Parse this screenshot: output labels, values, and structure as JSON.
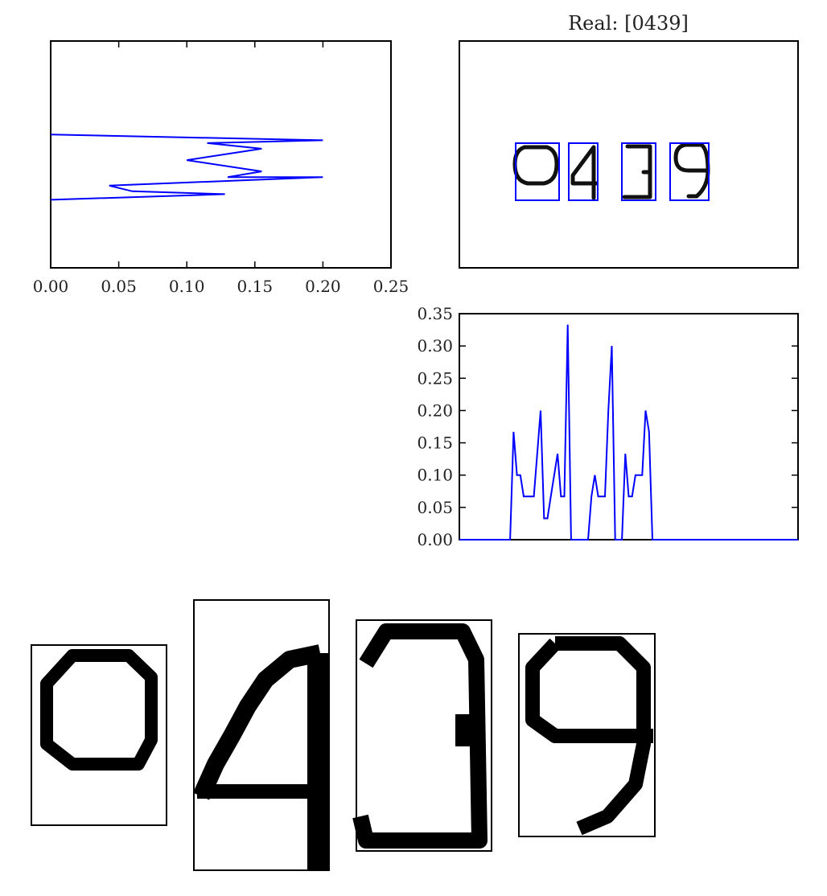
{
  "title": "Real: [0439]",
  "chart_data": [
    {
      "type": "line",
      "name": "horizontal-projection",
      "orientation": "horizontal",
      "xlim": [
        0.0,
        0.25
      ],
      "ylim": [
        0,
        40
      ],
      "x_ticks": [
        "0.00",
        "0.05",
        "0.10",
        "0.15",
        "0.20",
        "0.25"
      ],
      "y_ticks": [],
      "series": [
        {
          "x": [
            0.0,
            0.2,
            0.115,
            0.155,
            0.1,
            0.155,
            0.13,
            0.2,
            0.043,
            0.06,
            0.128,
            0.0
          ],
          "y": [
            16.5,
            17.5,
            18.0,
            19.0,
            21.0,
            23.0,
            24.0,
            24.0,
            25.5,
            26.5,
            27.0,
            28.0
          ]
        }
      ],
      "color": "#0000ff"
    },
    {
      "type": "image",
      "name": "plate-image",
      "title": "Real: [0439]",
      "digits": [
        "0",
        "4",
        "3",
        "9"
      ],
      "boxes_color": "#0000ff"
    },
    {
      "type": "line",
      "name": "vertical-projection",
      "xlim": [
        0,
        100
      ],
      "ylim": [
        0.0,
        0.35
      ],
      "y_ticks": [
        "0.00",
        "0.05",
        "0.10",
        "0.15",
        "0.20",
        "0.25",
        "0.30",
        "0.35"
      ],
      "x_ticks": [],
      "series": [
        {
          "x": [
            0,
            15,
            16,
            17,
            18,
            19,
            20,
            21,
            22,
            23,
            24,
            25,
            26,
            27,
            28,
            29,
            30,
            31,
            32,
            33,
            34,
            35,
            36,
            37,
            38,
            39,
            40,
            41,
            42,
            43,
            44,
            45,
            46,
            47,
            48,
            49,
            50,
            51,
            52,
            53,
            54,
            55,
            56,
            57,
            58,
            59,
            60,
            61,
            62,
            63,
            64,
            65,
            66,
            67,
            68,
            69,
            70,
            71,
            72,
            100
          ],
          "y": [
            0.0,
            0.0,
            0.167,
            0.1,
            0.1,
            0.067,
            0.067,
            0.067,
            0.067,
            0.133,
            0.2,
            0.033,
            0.033,
            0.067,
            0.1,
            0.133,
            0.067,
            0.067,
            0.333,
            0.0,
            0.0,
            0.0,
            0.0,
            0.0,
            0.0,
            0.067,
            0.1,
            0.067,
            0.067,
            0.067,
            0.2,
            0.3,
            0.0,
            0.0,
            0.0,
            0.133,
            0.067,
            0.067,
            0.1,
            0.1,
            0.1,
            0.2,
            0.167,
            0.0,
            0.0,
            0.0,
            0.0,
            0.0,
            0.0,
            0.0,
            0.0,
            0.0,
            0.0,
            0.0,
            0.0,
            0.0,
            0.0,
            0.0,
            0.0,
            0.0
          ]
        }
      ],
      "color": "#0000ff"
    },
    {
      "type": "image",
      "name": "digit-crops",
      "digits": [
        "0",
        "4",
        "3",
        "9"
      ]
    }
  ]
}
